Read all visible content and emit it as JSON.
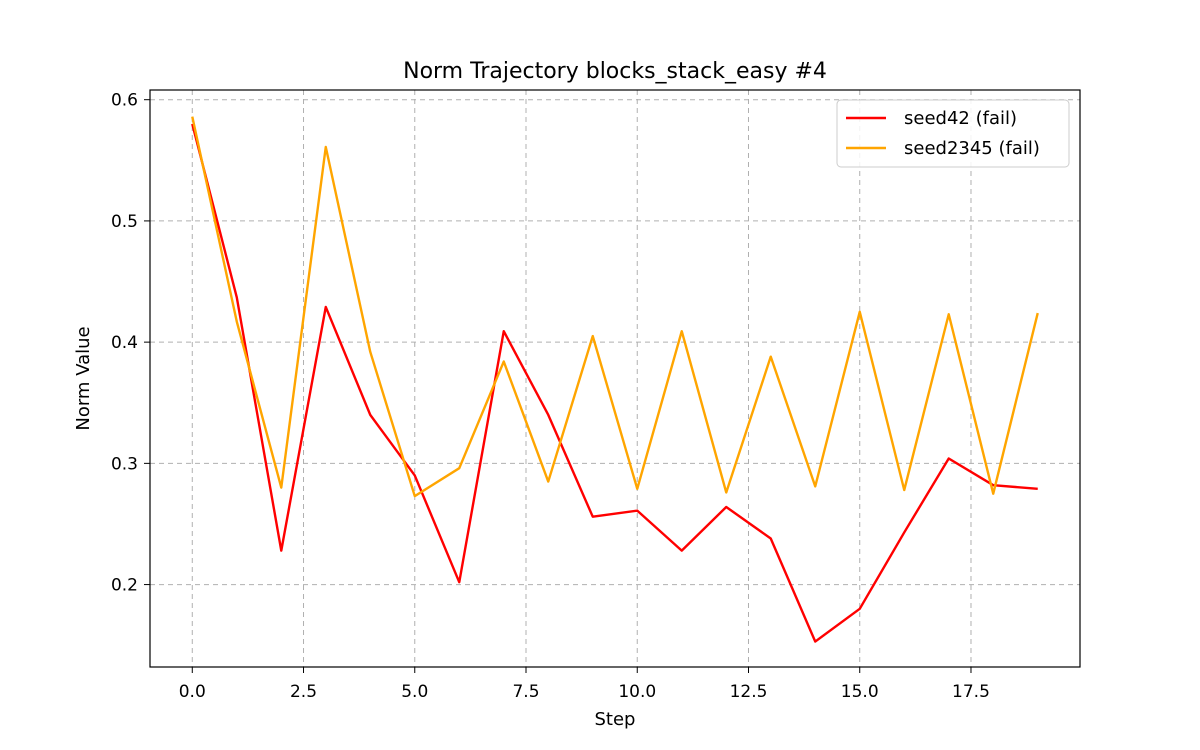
{
  "chart_data": {
    "type": "line",
    "title": "Norm Trajectory blocks_stack_easy #4",
    "xlabel": "Step",
    "ylabel": "Norm Value",
    "xlim": [
      -0.95,
      19.95
    ],
    "ylim": [
      0.132,
      0.608
    ],
    "xticks": [
      0.0,
      2.5,
      5.0,
      7.5,
      10.0,
      12.5,
      15.0,
      17.5
    ],
    "xtick_labels": [
      "0.0",
      "2.5",
      "5.0",
      "7.5",
      "10.0",
      "12.5",
      "15.0",
      "17.5"
    ],
    "yticks": [
      0.2,
      0.3,
      0.4,
      0.5,
      0.6
    ],
    "ytick_labels": [
      "0.2",
      "0.3",
      "0.4",
      "0.5",
      "0.6"
    ],
    "grid": true,
    "legend_position": "top-right",
    "x": [
      0,
      1,
      2,
      3,
      4,
      5,
      6,
      7,
      8,
      9,
      10,
      11,
      12,
      13,
      14,
      15,
      16,
      17,
      18,
      19
    ],
    "series": [
      {
        "name": "seed42 (fail)",
        "color": "#ff0000",
        "values": [
          0.58,
          0.437,
          0.228,
          0.429,
          0.34,
          0.29,
          0.202,
          0.409,
          0.34,
          0.256,
          0.261,
          0.228,
          0.264,
          0.238,
          0.153,
          0.18,
          0.243,
          0.304,
          0.282,
          0.279
        ]
      },
      {
        "name": "seed2345 (fail)",
        "color": "#ffa500",
        "values": [
          0.586,
          0.417,
          0.28,
          0.561,
          0.392,
          0.273,
          0.296,
          0.384,
          0.285,
          0.405,
          0.279,
          0.409,
          0.276,
          0.388,
          0.281,
          0.425,
          0.278,
          0.423,
          0.275,
          0.424
        ]
      }
    ]
  }
}
